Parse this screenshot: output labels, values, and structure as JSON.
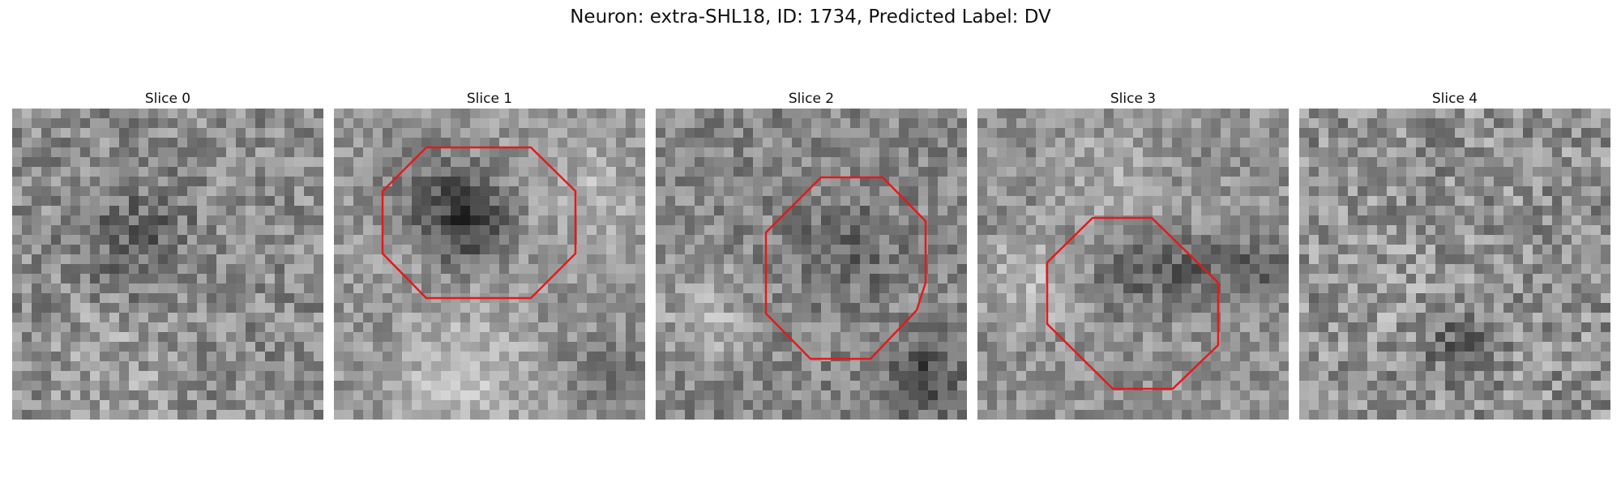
{
  "figure": {
    "title": "Neuron: extra-SHL18, ID: 1734, Predicted Label: DV"
  },
  "colors": {
    "roi_outline": "#e31a1c",
    "colormap": "grayscale"
  },
  "slices": [
    {
      "label": "Slice 0",
      "has_roi": false
    },
    {
      "label": "Slice 1",
      "has_roi": true
    },
    {
      "label": "Slice 2",
      "has_roi": true
    },
    {
      "label": "Slice 3",
      "has_roi": true
    },
    {
      "label": "Slice 4",
      "has_roi": false
    }
  ]
}
